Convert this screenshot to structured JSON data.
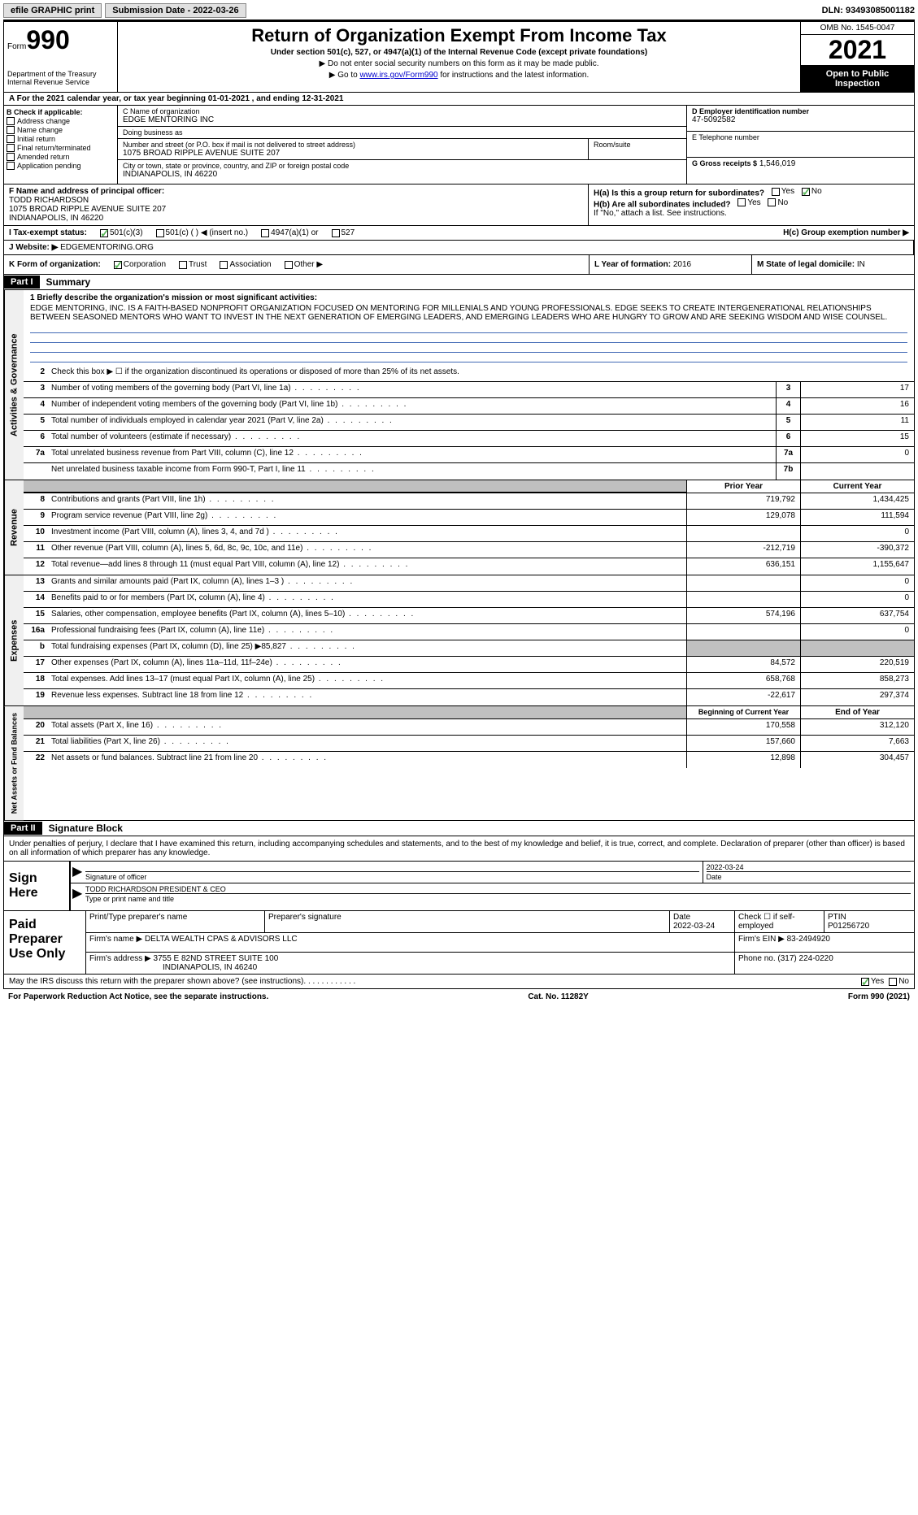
{
  "topbar": {
    "efile": "efile GRAPHIC print",
    "submission_label": "Submission Date - 2022-03-26",
    "dln_label": "DLN: 93493085001182"
  },
  "header": {
    "form_label": "Form",
    "form_num": "990",
    "title": "Return of Organization Exempt From Income Tax",
    "subtitle": "Under section 501(c), 527, or 4947(a)(1) of the Internal Revenue Code (except private foundations)",
    "note1": "▶ Do not enter social security numbers on this form as it may be made public.",
    "note2_pre": "▶ Go to ",
    "note2_link": "www.irs.gov/Form990",
    "note2_post": " for instructions and the latest information.",
    "dept": "Department of the Treasury",
    "irs": "Internal Revenue Service",
    "omb": "OMB No. 1545-0047",
    "year": "2021",
    "open_pub": "Open to Public Inspection"
  },
  "row_a": "A For the 2021 calendar year, or tax year beginning 01-01-2021     , and ending 12-31-2021",
  "col_b": {
    "label": "B Check if applicable:",
    "items": [
      "Address change",
      "Name change",
      "Initial return",
      "Final return/terminated",
      "Amended return",
      "Application pending"
    ]
  },
  "col_c": {
    "name_label": "C Name of organization",
    "name": "EDGE MENTORING INC",
    "dba_label": "Doing business as",
    "dba": "",
    "street_label": "Number and street (or P.O. box if mail is not delivered to street address)",
    "street": "1075 BROAD RIPPLE AVENUE SUITE 207",
    "room_label": "Room/suite",
    "city_label": "City or town, state or province, country, and ZIP or foreign postal code",
    "city": "INDIANAPOLIS, IN  46220"
  },
  "col_d": {
    "ein_label": "D Employer identification number",
    "ein": "47-5092582",
    "phone_label": "E Telephone number",
    "phone": "",
    "receipts_label": "G Gross receipts $",
    "receipts": "1,546,019"
  },
  "row_f": {
    "label": "F  Name and address of principal officer:",
    "name": "TODD RICHARDSON",
    "addr1": "1075 BROAD RIPPLE AVENUE SUITE 207",
    "addr2": "INDIANAPOLIS, IN  46220"
  },
  "row_h": {
    "ha_label": "H(a)  Is this a group return for subordinates?",
    "hb_label": "H(b)  Are all subordinates included?",
    "hb_note": "If \"No,\" attach a list. See instructions.",
    "hc_label": "H(c)  Group exemption number ▶"
  },
  "row_i": {
    "label": "I  Tax-exempt status:",
    "opts": [
      "501(c)(3)",
      "501(c) (  ) ◀ (insert no.)",
      "4947(a)(1) or",
      "527"
    ]
  },
  "row_j": {
    "label": "J  Website: ▶",
    "value": "EDGEMENTORING.ORG"
  },
  "row_k": {
    "label": "K Form of organization:",
    "opts": [
      "Corporation",
      "Trust",
      "Association",
      "Other ▶"
    ]
  },
  "row_l": {
    "label": "L Year of formation:",
    "value": "2016"
  },
  "row_m": {
    "label": "M State of legal domicile:",
    "value": "IN"
  },
  "part1": {
    "hdr": "Part I",
    "title": "Summary",
    "line1_label": "1  Briefly describe the organization's mission or most significant activities:",
    "mission": "EDGE MENTORING, INC. IS A FAITH-BASED NONPROFIT ORGANIZATION FOCUSED ON MENTORING FOR MILLENIALS AND YOUNG PROFESSIONALS. EDGE SEEKS TO CREATE INTERGENERATIONAL RELATIONSHIPS BETWEEN SEASONED MENTORS WHO WANT TO INVEST IN THE NEXT GENERATION OF EMERGING LEADERS, AND EMERGING LEADERS WHO ARE HUNGRY TO GROW AND ARE SEEKING WISDOM AND WISE COUNSEL.",
    "line2": "Check this box ▶ ☐  if the organization discontinued its operations or disposed of more than 25% of its net assets.",
    "gov_lines": [
      {
        "num": "3",
        "text": "Number of voting members of the governing body (Part VI, line 1a)",
        "box": "3",
        "val": "17"
      },
      {
        "num": "4",
        "text": "Number of independent voting members of the governing body (Part VI, line 1b)",
        "box": "4",
        "val": "16"
      },
      {
        "num": "5",
        "text": "Total number of individuals employed in calendar year 2021 (Part V, line 2a)",
        "box": "5",
        "val": "11"
      },
      {
        "num": "6",
        "text": "Total number of volunteers (estimate if necessary)",
        "box": "6",
        "val": "15"
      },
      {
        "num": "7a",
        "text": "Total unrelated business revenue from Part VIII, column (C), line 12",
        "box": "7a",
        "val": "0"
      },
      {
        "num": "",
        "text": "Net unrelated business taxable income from Form 990-T, Part I, line 11",
        "box": "7b",
        "val": ""
      }
    ],
    "prior_hdr": "Prior Year",
    "curr_hdr": "Current Year",
    "rev_lines": [
      {
        "num": "8",
        "text": "Contributions and grants (Part VIII, line 1h)",
        "prior": "719,792",
        "curr": "1,434,425"
      },
      {
        "num": "9",
        "text": "Program service revenue (Part VIII, line 2g)",
        "prior": "129,078",
        "curr": "111,594"
      },
      {
        "num": "10",
        "text": "Investment income (Part VIII, column (A), lines 3, 4, and 7d )",
        "prior": "",
        "curr": "0"
      },
      {
        "num": "11",
        "text": "Other revenue (Part VIII, column (A), lines 5, 6d, 8c, 9c, 10c, and 11e)",
        "prior": "-212,719",
        "curr": "-390,372"
      },
      {
        "num": "12",
        "text": "Total revenue—add lines 8 through 11 (must equal Part VIII, column (A), line 12)",
        "prior": "636,151",
        "curr": "1,155,647"
      }
    ],
    "exp_lines": [
      {
        "num": "13",
        "text": "Grants and similar amounts paid (Part IX, column (A), lines 1–3 )",
        "prior": "",
        "curr": "0"
      },
      {
        "num": "14",
        "text": "Benefits paid to or for members (Part IX, column (A), line 4)",
        "prior": "",
        "curr": "0"
      },
      {
        "num": "15",
        "text": "Salaries, other compensation, employee benefits (Part IX, column (A), lines 5–10)",
        "prior": "574,196",
        "curr": "637,754"
      },
      {
        "num": "16a",
        "text": "Professional fundraising fees (Part IX, column (A), line 11e)",
        "prior": "",
        "curr": "0"
      },
      {
        "num": "b",
        "text": "Total fundraising expenses (Part IX, column (D), line 25) ▶85,827",
        "prior": "shaded",
        "curr": "shaded"
      },
      {
        "num": "17",
        "text": "Other expenses (Part IX, column (A), lines 11a–11d, 11f–24e)",
        "prior": "84,572",
        "curr": "220,519"
      },
      {
        "num": "18",
        "text": "Total expenses. Add lines 13–17 (must equal Part IX, column (A), line 25)",
        "prior": "658,768",
        "curr": "858,273"
      },
      {
        "num": "19",
        "text": "Revenue less expenses. Subtract line 18 from line 12",
        "prior": "-22,617",
        "curr": "297,374"
      }
    ],
    "beg_hdr": "Beginning of Current Year",
    "end_hdr": "End of Year",
    "net_lines": [
      {
        "num": "20",
        "text": "Total assets (Part X, line 16)",
        "prior": "170,558",
        "curr": "312,120"
      },
      {
        "num": "21",
        "text": "Total liabilities (Part X, line 26)",
        "prior": "157,660",
        "curr": "7,663"
      },
      {
        "num": "22",
        "text": "Net assets or fund balances. Subtract line 21 from line 20",
        "prior": "12,898",
        "curr": "304,457"
      }
    ]
  },
  "vtabs": {
    "gov": "Activities & Governance",
    "rev": "Revenue",
    "exp": "Expenses",
    "net": "Net Assets or Fund Balances"
  },
  "part2": {
    "hdr": "Part II",
    "title": "Signature Block",
    "intro": "Under penalties of perjury, I declare that I have examined this return, including accompanying schedules and statements, and to the best of my knowledge and belief, it is true, correct, and complete. Declaration of preparer (other than officer) is based on all information of which preparer has any knowledge.",
    "sign_here": "Sign Here",
    "sig_officer": "Signature of officer",
    "sig_date_label": "Date",
    "sig_date": "2022-03-24",
    "sig_name": "TODD RICHARDSON  PRESIDENT & CEO",
    "sig_name_label": "Type or print name and title",
    "paid": "Paid Preparer Use Only",
    "p_name_label": "Print/Type preparer's name",
    "p_sig_label": "Preparer's signature",
    "p_date_label": "Date",
    "p_date": "2022-03-24",
    "p_check_label": "Check ☐ if self-employed",
    "ptin_label": "PTIN",
    "ptin": "P01256720",
    "firm_name_label": "Firm's name    ▶",
    "firm_name": "DELTA WEALTH CPAS & ADVISORS LLC",
    "firm_ein_label": "Firm's EIN ▶",
    "firm_ein": "83-2494920",
    "firm_addr_label": "Firm's address ▶",
    "firm_addr1": "3755 E 82ND STREET SUITE 100",
    "firm_addr2": "INDIANAPOLIS, IN  46240",
    "firm_phone_label": "Phone no.",
    "firm_phone": "(317) 224-0220",
    "may_irs": "May the IRS discuss this return with the preparer shown above? (see instructions)"
  },
  "footer": {
    "left": "For Paperwork Reduction Act Notice, see the separate instructions.",
    "mid": "Cat. No. 11282Y",
    "right": "Form 990 (2021)"
  },
  "yn": {
    "yes": "Yes",
    "no": "No"
  }
}
